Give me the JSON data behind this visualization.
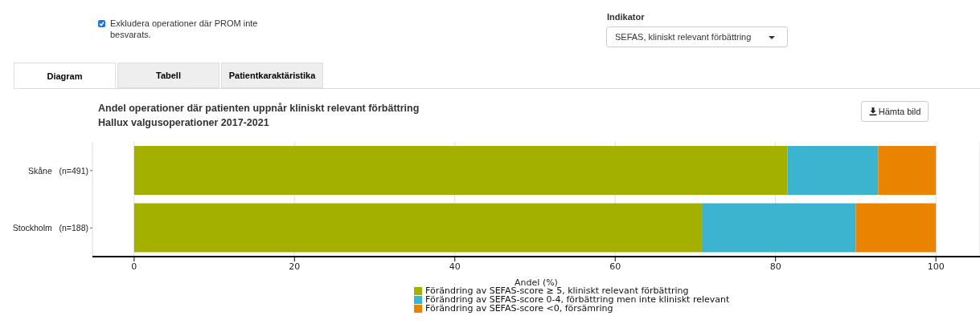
{
  "chart_data": {
    "type": "bar",
    "orientation": "horizontal",
    "stacked": true,
    "title": "Andel operationer där patienten uppnår kliniskt relevant förbättring",
    "subtitle": "Hallux valgusoperationer 2017-2021",
    "xlabel": "Andel (%)",
    "categories": [
      "Skåne   (n=491)",
      "Stockholm   (n=188)"
    ],
    "series": [
      {
        "name": "Förändring av SEFAS-score ≥ 5, kliniskt relevant förbättring",
        "color": "#a4b000",
        "values": [
          81.5,
          70.8
        ]
      },
      {
        "name": "Förändring av SEFAS-score 0-4, förbättring men inte kliniskt relevant",
        "color": "#3cb4cf",
        "values": [
          11.3,
          19.2
        ]
      },
      {
        "name": "Förändring av SEFAS-score <0, försämring",
        "color": "#e98300",
        "values": [
          7.2,
          10.0
        ]
      }
    ],
    "xlim": [
      -5.2,
      105.5
    ],
    "xticks": [
      0,
      20,
      40,
      60,
      80,
      100
    ],
    "grid": "x",
    "legend": "bottom",
    "annotations": [
      "Exkludera operationer där PROM inte besvarats.",
      "Indikator",
      "SEFAS, kliniskt relevant förbättring",
      "Diagram",
      "Tabell",
      "Patientkaraktäristika",
      "Hämta bild"
    ]
  }
}
